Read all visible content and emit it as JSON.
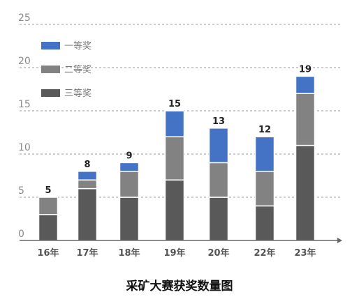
{
  "chart_data": {
    "type": "bar",
    "stacked": true,
    "title": "采矿大赛获奖数量图",
    "xlabel": "",
    "ylabel": "",
    "ylim": [
      0,
      25
    ],
    "yticks": [
      0,
      5,
      10,
      15,
      20,
      25
    ],
    "grid": true,
    "legend_position": "top-left",
    "categories": [
      "16年",
      "17年",
      "18年",
      "19年",
      "20年",
      "22年",
      "23年"
    ],
    "series": [
      {
        "name": "一等奖",
        "color": "#4472C4",
        "values": [
          0,
          1,
          1,
          3,
          4,
          4,
          2
        ]
      },
      {
        "name": "二等奖",
        "color": "#828282",
        "values": [
          2,
          1,
          3,
          5,
          4,
          4,
          6
        ]
      },
      {
        "name": "三等奖",
        "color": "#595959",
        "values": [
          3,
          6,
          5,
          7,
          5,
          4,
          11
        ]
      }
    ],
    "totals": [
      5,
      8,
      9,
      15,
      13,
      12,
      19
    ]
  }
}
